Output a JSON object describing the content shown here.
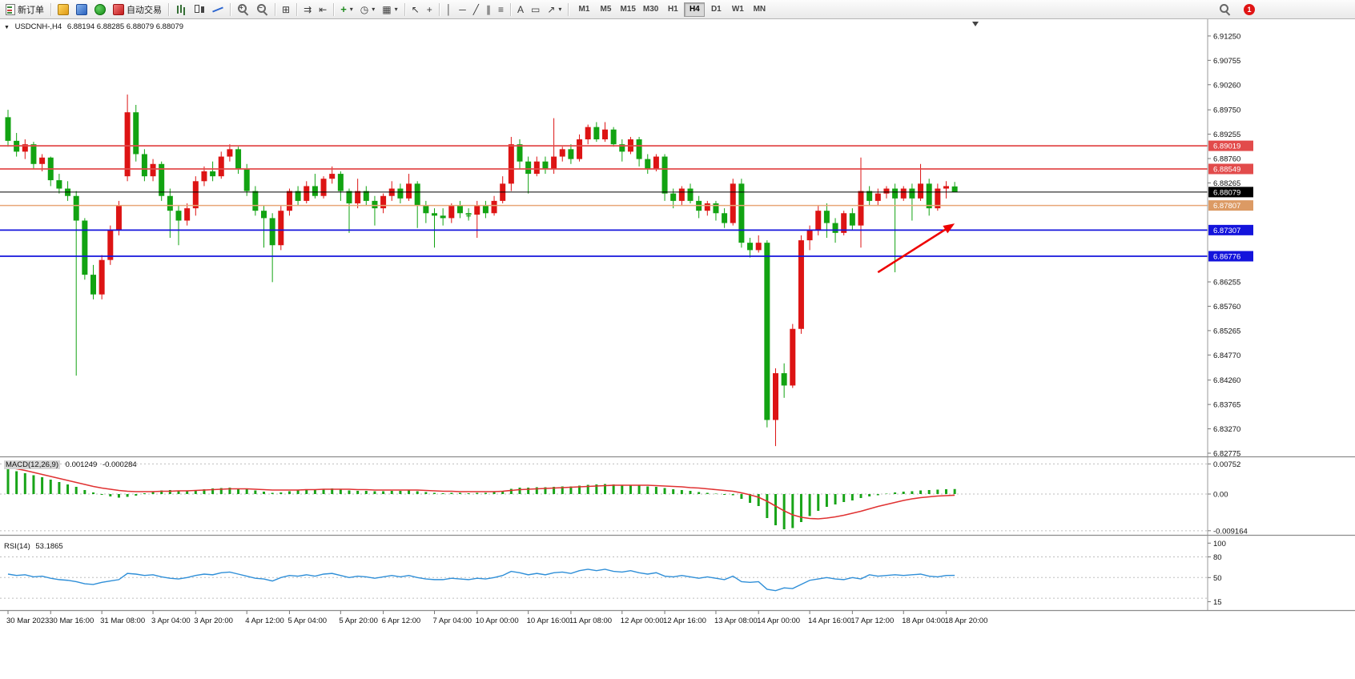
{
  "toolbar": {
    "new_order_label": "新订单",
    "autotrading_label": "自动交易",
    "timeframes": [
      "M1",
      "M5",
      "M15",
      "M30",
      "H1",
      "H4",
      "D1",
      "W1",
      "MN"
    ],
    "active_timeframe": "H4",
    "notification_count": "1"
  },
  "icons": {
    "zoom_plus": "+",
    "zoom_minus": "−",
    "tile": "⊞",
    "autoscroll": "⇉",
    "shift": "⇤",
    "indicator_plus": "+",
    "clock": "◷",
    "template": "▦",
    "caret": "▾",
    "cursor": "↖",
    "crosshair": "+",
    "vline": "│",
    "hline": "─",
    "trend": "╱",
    "channel": "∥",
    "fibo": "≡",
    "text": "A",
    "label": "▭",
    "arrows": "↗",
    "collapse": "▼"
  },
  "chart_data": {
    "type": "candlestick+indicators",
    "symbol": "USDCNH-",
    "timeframe": "H4",
    "header": {
      "title": "USDCNH-,H4",
      "open": 6.88194,
      "high": 6.88285,
      "low": 6.88079,
      "close": 6.88079,
      "ohlc_text": "6.88194 6.88285 6.88079 6.88079"
    },
    "colors": {
      "up": "#dd1414",
      "down": "#12a312",
      "macd_hist": "#18a418",
      "macd_signal": "#e03232",
      "rsi_line": "#2f8fd8",
      "grid": "#bdbdbd"
    },
    "price_axis": {
      "max_render": 6.9133,
      "min_render": 6.8271,
      "ticks": [
        "6.91250",
        "6.90755",
        "6.90260",
        "6.89750",
        "6.89255",
        "6.88760",
        "6.88265",
        "6.86255",
        "6.85760",
        "6.85265",
        "6.84770",
        "6.84260",
        "6.83765",
        "6.83270",
        "6.82775"
      ]
    },
    "hlines": [
      {
        "price": 6.89019,
        "label": "6.89019",
        "color": "#e24b4b",
        "badge_color": "#e24b4b",
        "width": 1.8
      },
      {
        "price": 6.88549,
        "label": "6.88549",
        "color": "#e24b4b",
        "badge_color": "#e24b4b",
        "width": 1.8
      },
      {
        "price": 6.87807,
        "label": "6.87807",
        "color": "#e8a678",
        "badge_color": "#dc9a64",
        "width": 1.5
      },
      {
        "price": 6.87307,
        "label": "6.87307",
        "color": "#1414dc",
        "badge_color": "#1414dc",
        "width": 1.8
      },
      {
        "price": 6.86776,
        "label": "6.86776",
        "color": "#1414dc",
        "badge_color": "#1414dc",
        "width": 1.8
      }
    ],
    "current_price": {
      "price": 6.88079,
      "label": "6.88079",
      "color": "#000000"
    },
    "candles": [
      [
        6.896,
        6.8975,
        6.89,
        6.8912
      ],
      [
        6.8912,
        6.8928,
        6.888,
        6.889
      ],
      [
        6.889,
        6.8915,
        6.8875,
        6.8905
      ],
      [
        6.8905,
        6.891,
        6.8855,
        6.8865
      ],
      [
        6.8865,
        6.8885,
        6.885,
        6.8878
      ],
      [
        6.8878,
        6.888,
        6.882,
        6.8832
      ],
      [
        6.8832,
        6.8845,
        6.8805,
        6.8815
      ],
      [
        6.8815,
        6.883,
        6.879,
        6.88
      ],
      [
        6.88,
        6.881,
        6.8435,
        6.875
      ],
      [
        6.875,
        6.8755,
        6.863,
        6.864
      ],
      [
        6.864,
        6.866,
        6.859,
        6.86
      ],
      [
        6.86,
        6.868,
        6.859,
        6.867
      ],
      [
        6.867,
        6.874,
        6.866,
        6.873
      ],
      [
        6.873,
        6.879,
        6.872,
        6.878
      ],
      [
        6.884,
        6.9006,
        6.883,
        6.897
      ],
      [
        6.897,
        6.8985,
        6.887,
        6.8885
      ],
      [
        6.8885,
        6.8895,
        6.883,
        6.884
      ],
      [
        6.884,
        6.8875,
        6.883,
        6.8865
      ],
      [
        6.8865,
        6.887,
        6.879,
        6.88
      ],
      [
        6.88,
        6.8815,
        6.8715,
        6.877
      ],
      [
        6.877,
        6.878,
        6.87,
        6.875
      ],
      [
        6.875,
        6.8785,
        6.874,
        6.8775
      ],
      [
        6.8775,
        6.884,
        6.876,
        6.883
      ],
      [
        6.883,
        6.886,
        6.882,
        6.885
      ],
      [
        6.885,
        6.887,
        6.883,
        6.884
      ],
      [
        6.884,
        6.889,
        6.8835,
        6.888
      ],
      [
        6.888,
        6.8905,
        6.887,
        6.8895
      ],
      [
        6.8895,
        6.89,
        6.8845,
        6.8855
      ],
      [
        6.8855,
        6.8865,
        6.88,
        6.881
      ],
      [
        6.881,
        6.882,
        6.876,
        6.877
      ],
      [
        6.877,
        6.878,
        6.8695,
        6.8755
      ],
      [
        6.8755,
        6.8765,
        6.8625,
        6.87
      ],
      [
        6.87,
        6.878,
        6.869,
        6.877
      ],
      [
        6.877,
        6.8815,
        6.876,
        6.881
      ],
      [
        6.881,
        6.882,
        6.878,
        6.879
      ],
      [
        6.879,
        6.883,
        6.8785,
        6.882
      ],
      [
        6.882,
        6.8845,
        6.8795,
        6.88
      ],
      [
        6.88,
        6.884,
        6.8795,
        6.8835
      ],
      [
        6.8835,
        6.886,
        6.8825,
        6.8845
      ],
      [
        6.8845,
        6.885,
        6.879,
        6.881
      ],
      [
        6.881,
        6.8815,
        6.8725,
        6.8785
      ],
      [
        6.8785,
        6.8835,
        6.8775,
        6.881
      ],
      [
        6.881,
        6.882,
        6.878,
        6.879
      ],
      [
        6.879,
        6.88,
        6.874,
        6.8775
      ],
      [
        6.8775,
        6.8805,
        6.8765,
        6.88
      ],
      [
        6.88,
        6.883,
        6.879,
        6.8815
      ],
      [
        6.8815,
        6.8825,
        6.8785,
        6.8795
      ],
      [
        6.8795,
        6.8845,
        6.879,
        6.8825
      ],
      [
        6.8825,
        6.883,
        6.8735,
        6.878
      ],
      [
        6.878,
        6.879,
        6.8745,
        6.8765
      ],
      [
        6.8765,
        6.8775,
        6.8695,
        6.876
      ],
      [
        6.876,
        6.8775,
        6.874,
        6.8755
      ],
      [
        6.8755,
        6.8785,
        6.8745,
        6.878
      ],
      [
        6.878,
        6.879,
        6.8755,
        6.8765
      ],
      [
        6.8765,
        6.8775,
        6.875,
        6.8762
      ],
      [
        6.8762,
        6.879,
        6.8715,
        6.878
      ],
      [
        6.878,
        6.879,
        6.8755,
        6.8765
      ],
      [
        6.8765,
        6.88,
        6.876,
        6.879
      ],
      [
        6.879,
        6.884,
        6.8785,
        6.8825
      ],
      [
        6.8825,
        6.892,
        6.881,
        6.8905
      ],
      [
        6.8905,
        6.8915,
        6.8855,
        6.887
      ],
      [
        6.887,
        6.888,
        6.8805,
        6.8845
      ],
      [
        6.8845,
        6.888,
        6.884,
        6.887
      ],
      [
        6.887,
        6.888,
        6.8845,
        6.8855
      ],
      [
        6.8855,
        6.8958,
        6.8845,
        6.888
      ],
      [
        6.888,
        6.89,
        6.887,
        6.8895
      ],
      [
        6.8895,
        6.8905,
        6.8865,
        6.8875
      ],
      [
        6.8875,
        6.8925,
        6.887,
        6.8915
      ],
      [
        6.8915,
        6.8945,
        6.8905,
        6.894
      ],
      [
        6.894,
        6.895,
        6.891,
        6.8915
      ],
      [
        6.8915,
        6.895,
        6.891,
        6.8935
      ],
      [
        6.8935,
        6.894,
        6.89,
        6.8905
      ],
      [
        6.8905,
        6.8915,
        6.887,
        6.889
      ],
      [
        6.889,
        6.892,
        6.8885,
        6.8915
      ],
      [
        6.8915,
        6.892,
        6.886,
        6.8875
      ],
      [
        6.8875,
        6.8885,
        6.8845,
        6.8855
      ],
      [
        6.8855,
        6.8885,
        6.885,
        6.888
      ],
      [
        6.888,
        6.8885,
        6.879,
        6.8805
      ],
      [
        6.8805,
        6.8815,
        6.8775,
        6.879
      ],
      [
        6.879,
        6.882,
        6.878,
        6.8815
      ],
      [
        6.8815,
        6.8825,
        6.8785,
        6.879
      ],
      [
        6.879,
        6.88,
        6.8755,
        6.877
      ],
      [
        6.877,
        6.879,
        6.876,
        6.8785
      ],
      [
        6.8785,
        6.879,
        6.875,
        6.8765
      ],
      [
        6.8765,
        6.8775,
        6.8735,
        6.8745
      ],
      [
        6.8745,
        6.8835,
        6.874,
        6.8825
      ],
      [
        6.8825,
        6.8835,
        6.8695,
        6.8705
      ],
      [
        6.8705,
        6.8715,
        6.8675,
        6.869
      ],
      [
        6.869,
        6.872,
        6.8685,
        6.8705
      ],
      [
        6.8705,
        6.871,
        6.833,
        6.8345
      ],
      [
        6.8345,
        6.845,
        6.8292,
        6.844
      ],
      [
        6.844,
        6.846,
        6.839,
        6.8415
      ],
      [
        6.8415,
        6.854,
        6.841,
        6.853
      ],
      [
        6.853,
        6.872,
        6.852,
        6.871
      ],
      [
        6.871,
        6.874,
        6.869,
        6.873
      ],
      [
        6.873,
        6.878,
        6.872,
        6.877
      ],
      [
        6.877,
        6.8785,
        6.8715,
        6.8745
      ],
      [
        6.8745,
        6.8755,
        6.8705,
        6.8725
      ],
      [
        6.8725,
        6.877,
        6.872,
        6.8765
      ],
      [
        6.8765,
        6.8775,
        6.873,
        6.874
      ],
      [
        6.874,
        6.8878,
        6.8695,
        6.881
      ],
      [
        6.881,
        6.882,
        6.878,
        6.879
      ],
      [
        6.879,
        6.8815,
        6.878,
        6.8805
      ],
      [
        6.8805,
        6.882,
        6.8795,
        6.8815
      ],
      [
        6.8815,
        6.8825,
        6.8645,
        6.8795
      ],
      [
        6.8795,
        6.882,
        6.879,
        6.8815
      ],
      [
        6.8815,
        6.8825,
        6.875,
        6.8795
      ],
      [
        6.8795,
        6.8865,
        6.879,
        6.8825
      ],
      [
        6.8825,
        6.8835,
        6.876,
        6.8775
      ],
      [
        6.8775,
        6.8825,
        6.877,
        6.8815
      ],
      [
        6.8815,
        6.883,
        6.8795,
        6.882
      ],
      [
        6.88194,
        6.88285,
        6.88079,
        6.88079
      ]
    ],
    "time_axis": {
      "labels": [
        "30 Mar 2023",
        "30 Mar 16:00",
        "31 Mar 08:00",
        "3 Apr 04:00",
        "3 Apr 20:00",
        "4 Apr 12:00",
        "5 Apr 04:00",
        "5 Apr 20:00",
        "6 Apr 12:00",
        "7 Apr 04:00",
        "10 Apr 00:00",
        "10 Apr 16:00",
        "11 Apr 08:00",
        "12 Apr 00:00",
        "12 Apr 16:00",
        "13 Apr 08:00",
        "14 Apr 00:00",
        "14 Apr 16:00",
        "17 Apr 12:00",
        "18 Apr 04:00",
        "18 Apr 20:00"
      ],
      "positions": [
        0,
        5,
        11,
        17,
        22,
        28,
        33,
        39,
        44,
        50,
        55,
        61,
        66,
        72,
        77,
        83,
        88,
        94,
        99,
        105,
        110
      ]
    },
    "annotations": [
      {
        "type": "arrow",
        "from_index": 102,
        "from_price": 6.8645,
        "to_index": 111,
        "to_price": 6.8744,
        "color": "#ee0000"
      },
      {
        "type": "cross",
        "index": 54,
        "price": 6.8758,
        "color": "#18a018"
      }
    ],
    "macd": {
      "label": "MACD(12,26,9)",
      "value": "0.001249",
      "signal_value": "-0.000284",
      "axis_labels": [
        "0.00752",
        "0.00",
        "-0.009164"
      ],
      "axis_values": [
        0.00752,
        0,
        -0.009164
      ],
      "range": [
        -0.0098,
        0.0082
      ],
      "histogram": [
        0.0062,
        0.0057,
        0.0052,
        0.0047,
        0.0042,
        0.0036,
        0.003,
        0.0024,
        0.0018,
        0.001,
        0.0004,
        -0.0002,
        -0.0006,
        -0.0009,
        -0.0007,
        -0.0004,
        0.0002,
        0.0006,
        0.0009,
        0.001,
        0.0008,
        0.0007,
        0.0009,
        0.0012,
        0.0014,
        0.0015,
        0.0016,
        0.0014,
        0.0012,
        0.0009,
        0.0006,
        0.0003,
        0.0004,
        0.0007,
        0.0009,
        0.0011,
        0.0012,
        0.0013,
        0.0014,
        0.0012,
        0.0009,
        0.0008,
        0.0008,
        0.0007,
        0.0007,
        0.0008,
        0.0008,
        0.0009,
        0.0007,
        0.0005,
        0.0003,
        0.0002,
        0.0003,
        0.0003,
        0.0002,
        0.0003,
        0.0003,
        0.0005,
        0.0008,
        0.0013,
        0.0016,
        0.0016,
        0.0017,
        0.0017,
        0.0018,
        0.0019,
        0.0019,
        0.0021,
        0.0023,
        0.0024,
        0.0025,
        0.0024,
        0.0023,
        0.0022,
        0.0021,
        0.0019,
        0.0018,
        0.0015,
        0.0012,
        0.001,
        0.0008,
        0.0005,
        0.0003,
        0.0001,
        -0.0002,
        -0.0003,
        -0.0012,
        -0.0022,
        -0.003,
        -0.006,
        -0.0078,
        -0.0088,
        -0.0085,
        -0.007,
        -0.0055,
        -0.0042,
        -0.0032,
        -0.0026,
        -0.002,
        -0.0016,
        -0.001,
        -0.0006,
        -0.0003,
        0.0001,
        0.0004,
        0.0006,
        0.0007,
        0.0009,
        0.001,
        0.0011,
        0.0012,
        0.001249
      ],
      "signal": [
        0.0066,
        0.0063,
        0.0059,
        0.0054,
        0.0049,
        0.0044,
        0.0039,
        0.0034,
        0.0029,
        0.0024,
        0.0019,
        0.0015,
        0.0012,
        0.0009,
        0.0007,
        0.0006,
        0.0006,
        0.0006,
        0.0007,
        0.0007,
        0.0008,
        0.0008,
        0.0009,
        0.001,
        0.0011,
        0.0012,
        0.0013,
        0.0013,
        0.0013,
        0.0012,
        0.0011,
        0.001,
        0.001,
        0.001,
        0.001,
        0.0011,
        0.0011,
        0.0012,
        0.0012,
        0.0012,
        0.0012,
        0.0011,
        0.0011,
        0.001,
        0.001,
        0.001,
        0.001,
        0.001,
        0.001,
        0.0009,
        0.0008,
        0.0007,
        0.0007,
        0.0006,
        0.0006,
        0.0006,
        0.0006,
        0.0006,
        0.0007,
        0.0009,
        0.0011,
        0.0012,
        0.0013,
        0.0014,
        0.0015,
        0.0016,
        0.0017,
        0.0018,
        0.0019,
        0.002,
        0.0021,
        0.0022,
        0.0022,
        0.0022,
        0.0022,
        0.0022,
        0.0021,
        0.002,
        0.0019,
        0.0018,
        0.0016,
        0.0015,
        0.0013,
        0.0011,
        0.0009,
        0.0007,
        0.0003,
        -0.0002,
        -0.0008,
        -0.0018,
        -0.003,
        -0.0042,
        -0.0052,
        -0.0058,
        -0.0061,
        -0.0062,
        -0.006,
        -0.0057,
        -0.0053,
        -0.0048,
        -0.0043,
        -0.0037,
        -0.0031,
        -0.0026,
        -0.0021,
        -0.0016,
        -0.0012,
        -0.0009,
        -0.0007,
        -0.0005,
        -0.0004,
        -0.000284
      ]
    },
    "rsi": {
      "label": "RSI(14)",
      "value": "53.1865",
      "levels": [
        80,
        50,
        20
      ],
      "axis_labels": [
        {
          "text": "100",
          "value": 100
        },
        {
          "text": "80",
          "value": 80
        },
        {
          "text": "50",
          "value": 50
        },
        {
          "text": "15",
          "value": 15
        }
      ],
      "range": [
        5,
        105
      ],
      "values": [
        55,
        53,
        54,
        51,
        52,
        49,
        47,
        46,
        44,
        41,
        40,
        43,
        45,
        47,
        56,
        55,
        53,
        54,
        51,
        49,
        48,
        50,
        53,
        55,
        54,
        57,
        58,
        55,
        52,
        49,
        48,
        45,
        50,
        53,
        52,
        54,
        52,
        55,
        56,
        53,
        50,
        52,
        51,
        49,
        51,
        53,
        51,
        53,
        50,
        48,
        47,
        47,
        49,
        48,
        47,
        49,
        48,
        50,
        53,
        59,
        57,
        54,
        56,
        54,
        57,
        58,
        56,
        60,
        62,
        60,
        62,
        59,
        58,
        60,
        57,
        55,
        57,
        52,
        51,
        53,
        51,
        49,
        51,
        49,
        47,
        52,
        44,
        43,
        44,
        33,
        31,
        35,
        34,
        40,
        46,
        48,
        50,
        48,
        47,
        50,
        48,
        54,
        52,
        53,
        54,
        53,
        54,
        55,
        52,
        51,
        53,
        53.19
      ]
    }
  }
}
